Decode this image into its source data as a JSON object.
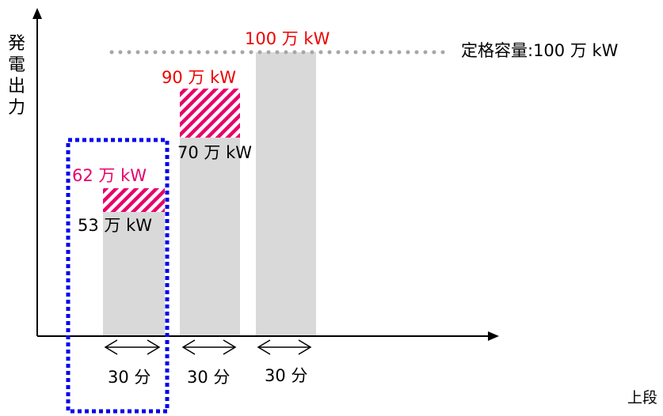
{
  "y_axis_label": [
    "発",
    "電",
    "出",
    "力"
  ],
  "rated_capacity_label": "定格容量:100 万 kW",
  "bars": [
    {
      "base_label": "53 万 kW",
      "top_label": "62 万 kW"
    },
    {
      "base_label": "70 万 kW",
      "top_label": "90 万 kW"
    },
    {
      "top_label": "100 万 kW"
    }
  ],
  "durations": [
    "30 分",
    "30 分",
    "30 分"
  ],
  "footnote": "上段",
  "colors": {
    "bar": "#d9d9d9",
    "hatch": "#e8006a",
    "dotted_line": "#a6a6a6",
    "highlight_box": "#0000ee",
    "label_red": "#ee0000",
    "label_pink": "#e8006a"
  }
}
